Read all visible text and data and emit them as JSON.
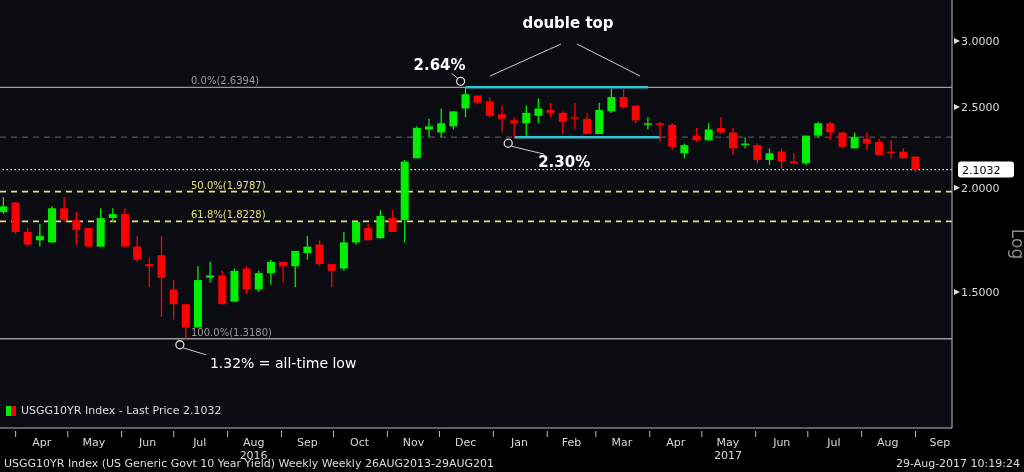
{
  "chart_data": {
    "type": "candlestick",
    "ylabel": "Log",
    "log": "y",
    "ylim": [
      1.03,
      3.36
    ],
    "yticks": [
      {
        "value": 1.5,
        "label": "1.5000"
      },
      {
        "value": 2,
        "label": "2.0000"
      },
      {
        "value": 2.5,
        "label": "2.5000"
      },
      {
        "value": 3,
        "label": "3.0000"
      }
    ],
    "xlim": [
      "2016-03-23",
      "2017-09-22"
    ],
    "xticks": [
      {
        "value": "2016-04-01",
        "label": null
      },
      {
        "value": "2016-04-16",
        "label": "Apr"
      },
      {
        "value": "2016-05-01",
        "label": null
      },
      {
        "value": "2016-05-16",
        "label": "May"
      },
      {
        "value": "2016-06-01",
        "label": null
      },
      {
        "value": "2016-06-16",
        "label": "Jun"
      },
      {
        "value": "2016-07-01",
        "label": null
      },
      {
        "value": "2016-07-16",
        "label": "Jul"
      },
      {
        "value": "2016-08-01",
        "label": null
      },
      {
        "value": "2016-08-16",
        "label": "Aug\n2016"
      },
      {
        "value": "2016-09-01",
        "label": null
      },
      {
        "value": "2016-09-16",
        "label": "Sep"
      },
      {
        "value": "2016-10-01",
        "label": null
      },
      {
        "value": "2016-10-16",
        "label": "Oct"
      },
      {
        "value": "2016-11-01",
        "label": null
      },
      {
        "value": "2016-11-16",
        "label": "Nov"
      },
      {
        "value": "2016-12-01",
        "label": null
      },
      {
        "value": "2016-12-16",
        "label": "Dec"
      },
      {
        "value": "2017-01-01",
        "label": null
      },
      {
        "value": "2017-01-16",
        "label": "Jan"
      },
      {
        "value": "2017-02-01",
        "label": null
      },
      {
        "value": "2017-02-15",
        "label": "Feb"
      },
      {
        "value": "2017-03-01",
        "label": null
      },
      {
        "value": "2017-03-16",
        "label": "Mar"
      },
      {
        "value": "2017-04-01",
        "label": null
      },
      {
        "value": "2017-04-16",
        "label": "Apr"
      },
      {
        "value": "2017-05-01",
        "label": null
      },
      {
        "value": "2017-05-16",
        "label": "May\n2017"
      },
      {
        "value": "2017-06-01",
        "label": null
      },
      {
        "value": "2017-06-16",
        "label": "Jun"
      },
      {
        "value": "2017-07-01",
        "label": null
      },
      {
        "value": "2017-07-16",
        "label": "Jul"
      },
      {
        "value": "2017-08-01",
        "label": null
      },
      {
        "value": "2017-08-16",
        "label": "Aug"
      },
      {
        "value": "2017-09-01",
        "label": null
      },
      {
        "value": "2017-09-15",
        "label": "Sep"
      }
    ],
    "legend": "bottom left",
    "grid": false,
    "series": [
      {
        "name": "USGG10YR Index - Last Price 2.1032",
        "x": [
          "2016-03-25",
          "2016-04-01",
          "2016-04-08",
          "2016-04-15",
          "2016-04-22",
          "2016-04-29",
          "2016-05-06",
          "2016-05-13",
          "2016-05-20",
          "2016-05-27",
          "2016-06-03",
          "2016-06-10",
          "2016-06-17",
          "2016-06-24",
          "2016-07-01",
          "2016-07-08",
          "2016-07-15",
          "2016-07-22",
          "2016-07-29",
          "2016-08-05",
          "2016-08-12",
          "2016-08-19",
          "2016-08-26",
          "2016-09-02",
          "2016-09-09",
          "2016-09-16",
          "2016-09-23",
          "2016-09-30",
          "2016-10-07",
          "2016-10-14",
          "2016-10-21",
          "2016-10-28",
          "2016-11-04",
          "2016-11-11",
          "2016-11-18",
          "2016-11-25",
          "2016-12-02",
          "2016-12-09",
          "2016-12-16",
          "2016-12-23",
          "2016-12-30",
          "2017-01-06",
          "2017-01-13",
          "2017-01-20",
          "2017-01-27",
          "2017-02-03",
          "2017-02-10",
          "2017-02-17",
          "2017-02-24",
          "2017-03-03",
          "2017-03-10",
          "2017-03-17",
          "2017-03-24",
          "2017-03-31",
          "2017-04-07",
          "2017-04-14",
          "2017-04-21",
          "2017-04-28",
          "2017-05-05",
          "2017-05-12",
          "2017-05-19",
          "2017-05-26",
          "2017-06-02",
          "2017-06-09",
          "2017-06-16",
          "2017-06-23",
          "2017-06-30",
          "2017-07-07",
          "2017-07-14",
          "2017-07-21",
          "2017-07-28",
          "2017-08-04",
          "2017-08-11",
          "2017-08-18",
          "2017-08-25",
          "2017-09-01"
        ],
        "ohlc": [
          [
            1.87,
            1.95,
            1.86,
            1.9
          ],
          [
            1.92,
            1.92,
            1.76,
            1.77
          ],
          [
            1.77,
            1.79,
            1.7,
            1.71
          ],
          [
            1.73,
            1.81,
            1.7,
            1.75
          ],
          [
            1.72,
            1.9,
            1.72,
            1.89
          ],
          [
            1.89,
            1.95,
            1.82,
            1.83
          ],
          [
            1.83,
            1.87,
            1.71,
            1.78
          ],
          [
            1.79,
            1.79,
            1.7,
            1.7
          ],
          [
            1.7,
            1.89,
            1.7,
            1.84
          ],
          [
            1.84,
            1.89,
            1.82,
            1.86
          ],
          [
            1.86,
            1.89,
            1.7,
            1.7
          ],
          [
            1.7,
            1.75,
            1.63,
            1.64
          ],
          [
            1.62,
            1.65,
            1.52,
            1.61
          ],
          [
            1.66,
            1.75,
            1.4,
            1.56
          ],
          [
            1.51,
            1.55,
            1.39,
            1.45
          ],
          [
            1.45,
            1.45,
            1.318,
            1.36
          ],
          [
            1.36,
            1.61,
            1.36,
            1.55
          ],
          [
            1.56,
            1.63,
            1.54,
            1.57
          ],
          [
            1.57,
            1.59,
            1.45,
            1.45
          ],
          [
            1.46,
            1.6,
            1.46,
            1.59
          ],
          [
            1.6,
            1.61,
            1.49,
            1.51
          ],
          [
            1.51,
            1.59,
            1.5,
            1.58
          ],
          [
            1.58,
            1.64,
            1.53,
            1.63
          ],
          [
            1.63,
            1.63,
            1.54,
            1.61
          ],
          [
            1.61,
            1.68,
            1.52,
            1.68
          ],
          [
            1.67,
            1.75,
            1.64,
            1.7
          ],
          [
            1.71,
            1.73,
            1.61,
            1.62
          ],
          [
            1.62,
            1.62,
            1.52,
            1.59
          ],
          [
            1.6,
            1.77,
            1.59,
            1.72
          ],
          [
            1.72,
            1.82,
            1.71,
            1.82
          ],
          [
            1.79,
            1.81,
            1.73,
            1.73
          ],
          [
            1.74,
            1.88,
            1.74,
            1.85
          ],
          [
            1.84,
            1.88,
            1.77,
            1.77
          ],
          [
            1.83,
            2.16,
            1.72,
            2.15
          ],
          [
            2.17,
            2.37,
            2.17,
            2.36
          ],
          [
            2.35,
            2.42,
            2.3,
            2.37
          ],
          [
            2.33,
            2.49,
            2.3,
            2.39
          ],
          [
            2.37,
            2.47,
            2.35,
            2.47
          ],
          [
            2.49,
            2.64,
            2.43,
            2.59
          ],
          [
            2.58,
            2.58,
            2.52,
            2.53
          ],
          [
            2.54,
            2.57,
            2.43,
            2.44
          ],
          [
            2.45,
            2.51,
            2.33,
            2.42
          ],
          [
            2.41,
            2.43,
            2.3,
            2.39
          ],
          [
            2.39,
            2.51,
            2.31,
            2.46
          ],
          [
            2.44,
            2.56,
            2.39,
            2.49
          ],
          [
            2.48,
            2.53,
            2.43,
            2.46
          ],
          [
            2.46,
            2.47,
            2.32,
            2.4
          ],
          [
            2.43,
            2.53,
            2.35,
            2.42
          ],
          [
            2.42,
            2.46,
            2.32,
            2.32
          ],
          [
            2.32,
            2.53,
            2.32,
            2.48
          ],
          [
            2.47,
            2.63,
            2.46,
            2.57
          ],
          [
            2.57,
            2.63,
            2.49,
            2.5
          ],
          [
            2.51,
            2.51,
            2.39,
            2.41
          ],
          [
            2.38,
            2.43,
            2.35,
            2.39
          ],
          [
            2.39,
            2.4,
            2.27,
            2.38
          ],
          [
            2.38,
            2.39,
            2.22,
            2.24
          ],
          [
            2.2,
            2.26,
            2.17,
            2.25
          ],
          [
            2.31,
            2.36,
            2.27,
            2.28
          ],
          [
            2.28,
            2.39,
            2.28,
            2.35
          ],
          [
            2.36,
            2.43,
            2.32,
            2.33
          ],
          [
            2.33,
            2.36,
            2.19,
            2.23
          ],
          [
            2.25,
            2.3,
            2.23,
            2.26
          ],
          [
            2.25,
            2.26,
            2.14,
            2.16
          ],
          [
            2.16,
            2.23,
            2.13,
            2.2
          ],
          [
            2.21,
            2.23,
            2.11,
            2.15
          ],
          [
            2.15,
            2.2,
            2.14,
            2.14
          ],
          [
            2.14,
            2.31,
            2.13,
            2.31
          ],
          [
            2.31,
            2.4,
            2.3,
            2.39
          ],
          [
            2.39,
            2.4,
            2.28,
            2.33
          ],
          [
            2.33,
            2.33,
            2.23,
            2.24
          ],
          [
            2.23,
            2.33,
            2.23,
            2.3
          ],
          [
            2.29,
            2.33,
            2.22,
            2.26
          ],
          [
            2.27,
            2.29,
            2.19,
            2.19
          ],
          [
            2.21,
            2.28,
            2.17,
            2.2
          ],
          [
            2.21,
            2.23,
            2.17,
            2.17
          ],
          [
            2.18,
            2.18,
            2.09,
            2.1032
          ]
        ],
        "colors": [
          "#00ee00",
          "#ff0000",
          "#ff0000",
          "#00ee00",
          "#00ee00",
          "#ff0000",
          "#ff0000",
          "#ff0000",
          "#00ee00",
          "#00ee00",
          "#ff0000",
          "#ff0000",
          "#ff0000",
          "#ff0000",
          "#ff0000",
          "#ff0000",
          "#00ee00",
          "#00ee00",
          "#ff0000",
          "#00ee00",
          "#ff0000",
          "#00ee00",
          "#00ee00",
          "#ff0000",
          "#00ee00",
          "#00ee00",
          "#ff0000",
          "#ff0000",
          "#00ee00",
          "#00ee00",
          "#ff0000",
          "#00ee00",
          "#ff0000",
          "#00ee00",
          "#00ee00",
          "#00ee00",
          "#00ee00",
          "#00ee00",
          "#00ee00",
          "#ff0000",
          "#ff0000",
          "#ff0000",
          "#ff0000",
          "#00ee00",
          "#00ee00",
          "#ff0000",
          "#ff0000",
          "#ff0000",
          "#ff0000",
          "#00ee00",
          "#00ee00",
          "#ff0000",
          "#ff0000",
          "#00ee00",
          "#ff0000",
          "#ff0000",
          "#00ee00",
          "#ff0000",
          "#00ee00",
          "#ff0000",
          "#ff0000",
          "#00ee00",
          "#ff0000",
          "#00ee00",
          "#ff0000",
          "#ff0000",
          "#00ee00",
          "#00ee00",
          "#ff0000",
          "#ff0000",
          "#00ee00",
          "#ff0000",
          "#ff0000",
          "#ff0000",
          "#ff0000",
          "#ff0000"
        ]
      },
      {
        "type": "line",
        "x": [
          "2016-12-16",
          "2017-03-31"
        ],
        "values": [
          2.64,
          2.64
        ],
        "color": "#35c4d4"
      },
      {
        "type": "line",
        "x": [
          "2017-01-13",
          "2017-04-07"
        ],
        "values": [
          2.3,
          2.3
        ],
        "color": "#35c4d4"
      }
    ],
    "ref_lines": [
      {
        "axis": "y",
        "value": 2.6394,
        "label": "0.0%(2.6394)",
        "color": "#9a9a9a",
        "line_style": "solid"
      },
      {
        "axis": "y",
        "value": 1.9787,
        "label": "50.0%(1.9787)",
        "color": "#e8e07a",
        "line_style": "dashed"
      },
      {
        "axis": "y",
        "value": 1.8228,
        "label": "61.8%(1.8228)",
        "color": "#e8e07a",
        "line_style": "dashed"
      },
      {
        "axis": "y",
        "value": 1.318,
        "label": "100.0%(1.3180)",
        "color": "#9a9a9a",
        "line_style": "solid"
      },
      {
        "axis": "y",
        "value": 2.3,
        "color": "#555555",
        "line_style": "dashed"
      },
      {
        "axis": "y",
        "value": 2.1032,
        "label": "2.1032",
        "color": "#ffffff",
        "line_style": "dotted"
      }
    ],
    "annotations": [
      "double top",
      {
        "text": "2.64%",
        "x": "2016-12-16",
        "y": 2.64
      },
      {
        "text": "2.30%",
        "x": "2017-01-13",
        "y": 2.3
      },
      {
        "text": "1.32% = all-time low",
        "x": "2016-07-08",
        "y": 1.318
      },
      "USGG10YR Index (US Generic Govt 10 Year Yield) Weekly  Weekly 26AUG2013-29AUG201",
      "29-Aug-2017 10:19:24"
    ]
  }
}
